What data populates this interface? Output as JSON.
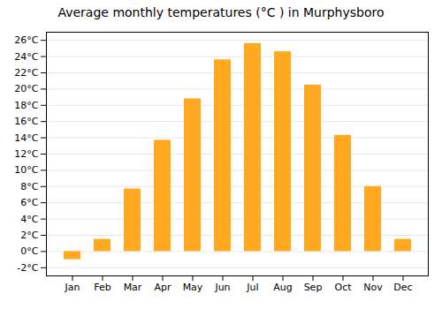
{
  "chart_data": {
    "type": "bar",
    "title": "Average monthly temperatures (°C ) in Murphysboro",
    "categories": [
      "Jan",
      "Feb",
      "Mar",
      "Apr",
      "May",
      "Jun",
      "Jul",
      "Aug",
      "Sep",
      "Oct",
      "Nov",
      "Dec"
    ],
    "values": [
      -1.0,
      1.5,
      7.7,
      13.7,
      18.8,
      23.6,
      25.6,
      24.6,
      20.5,
      14.3,
      8.0,
      1.5
    ],
    "color": "#FFA820",
    "ylim": [
      -3,
      27
    ],
    "yticks": [
      {
        "value": -2,
        "label": "-2°C"
      },
      {
        "value": 0,
        "label": "0°C"
      },
      {
        "value": 2,
        "label": "2°C"
      },
      {
        "value": 4,
        "label": "4°C"
      },
      {
        "value": 6,
        "label": "6°C"
      },
      {
        "value": 8,
        "label": "8°C"
      },
      {
        "value": 10,
        "label": "10°C"
      },
      {
        "value": 12,
        "label": "12°C"
      },
      {
        "value": 14,
        "label": "14°C"
      },
      {
        "value": 16,
        "label": "16°C"
      },
      {
        "value": 18,
        "label": "18°C"
      },
      {
        "value": 20,
        "label": "20°C"
      },
      {
        "value": 22,
        "label": "22°C"
      },
      {
        "value": 24,
        "label": "24°C"
      },
      {
        "value": 26,
        "label": "26°C"
      }
    ],
    "grid": true
  }
}
